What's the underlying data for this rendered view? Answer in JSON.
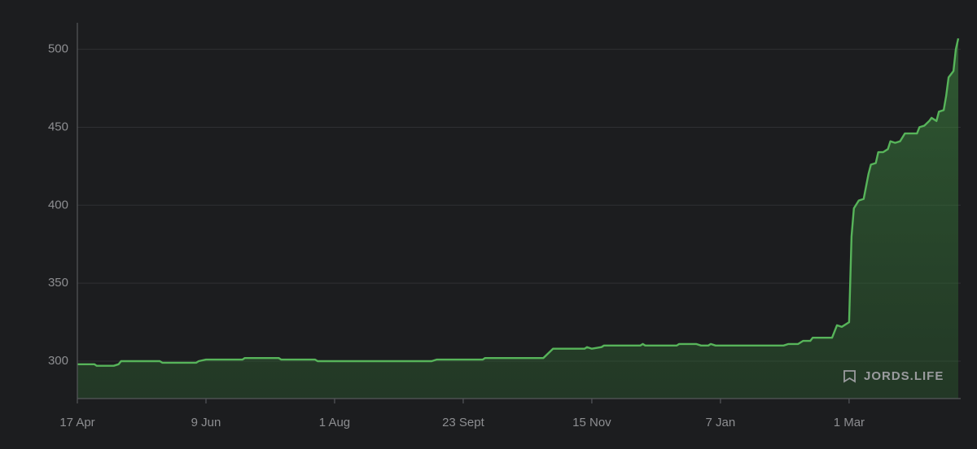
{
  "chart_data": {
    "type": "area",
    "color": "#57b45a",
    "grid": true,
    "watermark": "JORDS.LIFE",
    "xlim": [
      0,
      364
    ],
    "ylim": [
      276,
      517
    ],
    "yticks": [
      300,
      350,
      400,
      450,
      500
    ],
    "xticks": [
      {
        "value": 0,
        "label": "17 Apr"
      },
      {
        "value": 53,
        "label": "9 Jun"
      },
      {
        "value": 106,
        "label": "1 Aug"
      },
      {
        "value": 159,
        "label": "23 Sept"
      },
      {
        "value": 212,
        "label": "15 Nov"
      },
      {
        "value": 265,
        "label": "7 Jan"
      },
      {
        "value": 318,
        "label": "1 Mar"
      }
    ],
    "x": [
      0,
      7,
      8,
      15,
      17,
      18,
      34,
      35,
      49,
      50,
      53,
      68,
      69,
      83,
      84,
      98,
      99,
      146,
      148,
      167,
      168,
      192,
      196,
      209,
      210,
      212,
      216,
      217,
      232,
      233,
      234,
      247,
      248,
      255,
      257,
      260,
      261,
      263,
      291,
      293,
      297,
      299,
      302,
      303,
      311,
      313,
      315,
      318,
      319,
      320,
      322,
      324,
      326,
      327,
      329,
      330,
      332,
      334,
      335,
      337,
      339,
      341,
      346,
      347,
      349,
      351,
      352,
      354,
      355,
      357,
      358,
      359,
      361,
      362,
      363
    ],
    "values": [
      298,
      298,
      297,
      297,
      298,
      300,
      300,
      299,
      299,
      300,
      301,
      301,
      302,
      302,
      301,
      301,
      300,
      300,
      301,
      301,
      302,
      302,
      308,
      308,
      309,
      308,
      309,
      310,
      310,
      311,
      310,
      310,
      311,
      311,
      310,
      310,
      311,
      310,
      310,
      311,
      311,
      313,
      313,
      315,
      315,
      323,
      322,
      325,
      380,
      398,
      403,
      404,
      420,
      426,
      427,
      434,
      434,
      436,
      441,
      440,
      441,
      446,
      446,
      450,
      451,
      454,
      456,
      454,
      460,
      461,
      470,
      482,
      486,
      500,
      507
    ]
  }
}
